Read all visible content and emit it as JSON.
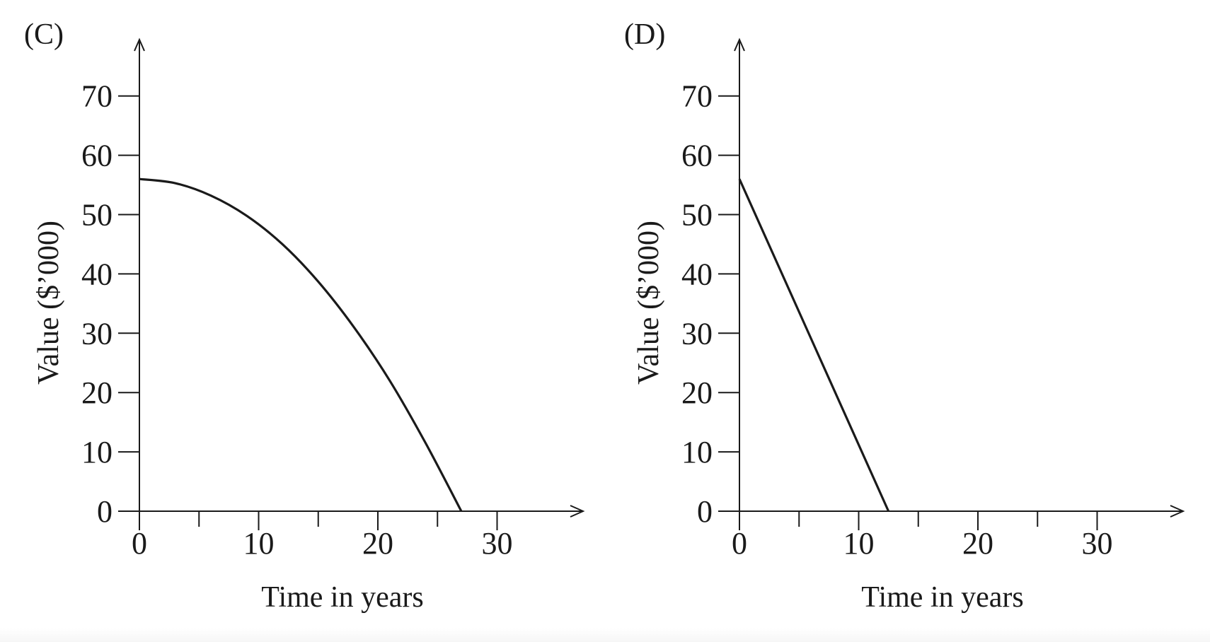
{
  "chart_data": [
    {
      "type": "line",
      "panel_label": "(C)",
      "xlabel": "Time in years",
      "ylabel": "Value ($’000)",
      "xlim": [
        0,
        35
      ],
      "ylim": [
        0,
        75
      ],
      "xticks": [
        0,
        10,
        20,
        30
      ],
      "xminor_ticks": [
        5,
        15,
        25
      ],
      "yticks": [
        0,
        10,
        20,
        30,
        40,
        50,
        60,
        70
      ],
      "grid": false,
      "series": [
        {
          "name": "value",
          "x": [
            0,
            3,
            6,
            9,
            12,
            15,
            18,
            21,
            24,
            27
          ],
          "y": [
            56,
            55.3,
            53.2,
            49.8,
            45,
            38.7,
            31,
            22,
            11.5,
            0
          ]
        }
      ]
    },
    {
      "type": "line",
      "panel_label": "(D)",
      "xlabel": "Time in years",
      "ylabel": "Value ($’000)",
      "xlim": [
        0,
        35
      ],
      "ylim": [
        0,
        75
      ],
      "xticks": [
        0,
        10,
        20,
        30
      ],
      "xminor_ticks": [
        5,
        15,
        25
      ],
      "yticks": [
        0,
        10,
        20,
        30,
        40,
        50,
        60,
        70
      ],
      "grid": false,
      "series": [
        {
          "name": "value",
          "x": [
            0,
            12.5
          ],
          "y": [
            56,
            0
          ]
        }
      ]
    }
  ],
  "colors": {
    "line": "#1a1a1a",
    "axis": "#1a1a1a"
  }
}
